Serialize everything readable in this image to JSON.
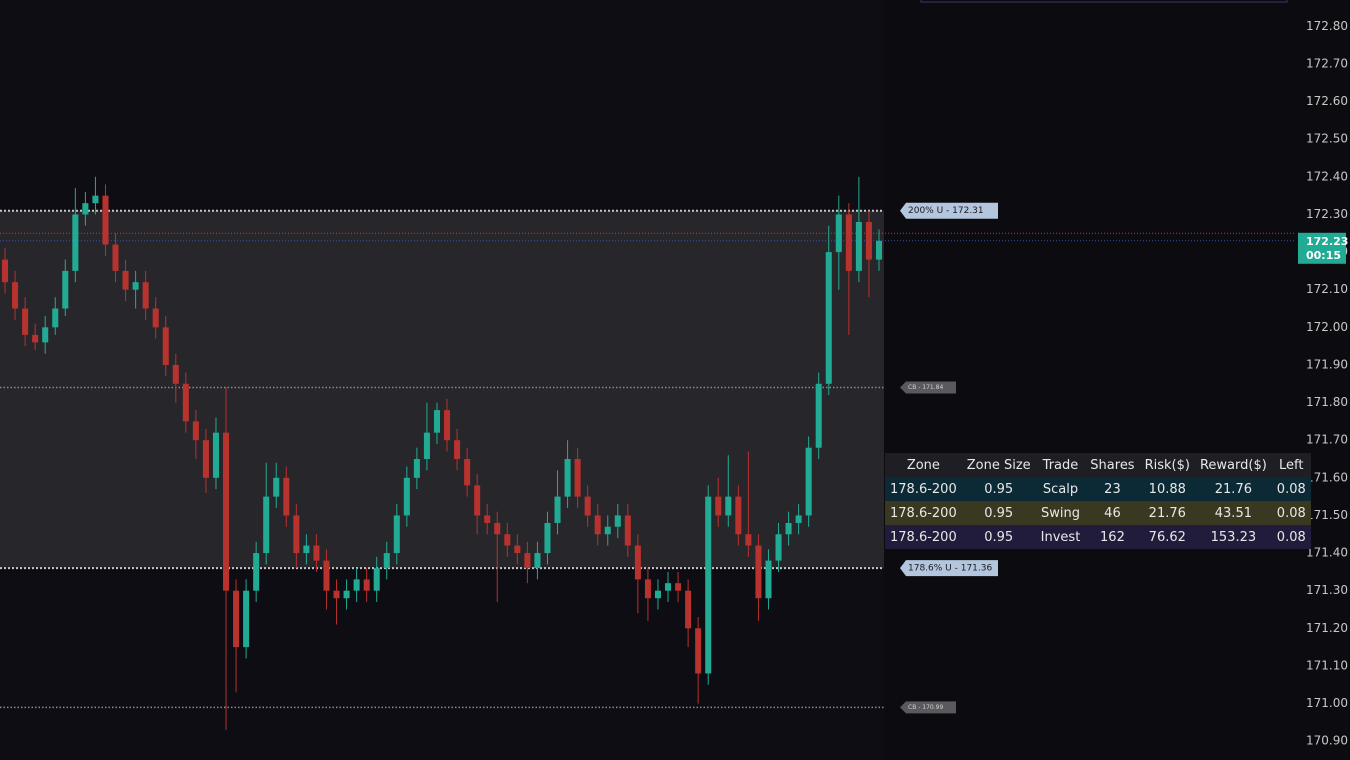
{
  "chart_data": {
    "type": "candlestick",
    "up_color": "#22ab94",
    "down_color": "#b8322e",
    "ylim": [
      170.85,
      172.87
    ],
    "yticks": [
      {
        "value": 170.9,
        "label": "170.90"
      },
      {
        "value": 171.0,
        "label": "171.00"
      },
      {
        "value": 171.1,
        "label": "171.10"
      },
      {
        "value": 171.2,
        "label": "171.20"
      },
      {
        "value": 171.3,
        "label": "171.30"
      },
      {
        "value": 171.4,
        "label": "171.40"
      },
      {
        "value": 171.5,
        "label": "171.50"
      },
      {
        "value": 171.6,
        "label": "171.60"
      },
      {
        "value": 171.7,
        "label": "171.70"
      },
      {
        "value": 171.8,
        "label": "171.80"
      },
      {
        "value": 171.9,
        "label": "171.90"
      },
      {
        "value": 172.0,
        "label": "172.00"
      },
      {
        "value": 172.1,
        "label": "172.10"
      },
      {
        "value": 172.2,
        "label": "172.20"
      },
      {
        "value": 172.3,
        "label": "172.30"
      },
      {
        "value": 172.4,
        "label": "172.40"
      },
      {
        "value": 172.5,
        "label": "172.50"
      },
      {
        "value": 172.6,
        "label": "172.60"
      },
      {
        "value": 172.7,
        "label": "172.70"
      },
      {
        "value": 172.8,
        "label": "172.80"
      }
    ],
    "open": [
      172.18,
      172.12,
      172.05,
      171.98,
      171.96,
      172.0,
      172.05,
      172.15,
      172.3,
      172.33,
      172.35,
      172.22,
      172.15,
      172.1,
      172.12,
      172.05,
      172.0,
      171.9,
      171.85,
      171.75,
      171.7,
      171.6,
      171.72,
      171.3,
      171.15,
      171.3,
      171.4,
      171.55,
      171.6,
      171.5,
      171.4,
      171.42,
      171.38,
      171.3,
      171.28,
      171.3,
      171.33,
      171.3,
      171.36,
      171.4,
      171.5,
      171.6,
      171.65,
      171.72,
      171.78,
      171.7,
      171.65,
      171.58,
      171.5,
      171.48,
      171.45,
      171.42,
      171.4,
      171.36,
      171.4,
      171.48,
      171.55,
      171.65,
      171.55,
      171.5,
      171.45,
      171.47,
      171.5,
      171.42,
      171.33,
      171.28,
      171.3,
      171.32,
      171.3,
      171.2,
      171.08,
      171.55,
      171.5,
      171.55,
      171.45,
      171.42,
      171.28,
      171.38,
      171.45,
      171.48,
      171.5,
      171.68,
      171.85,
      172.2,
      172.3,
      172.15,
      172.28,
      172.18
    ],
    "high": [
      172.21,
      172.15,
      172.08,
      172.01,
      172.03,
      172.08,
      172.18,
      172.37,
      172.36,
      172.4,
      172.38,
      172.25,
      172.18,
      172.15,
      172.15,
      172.08,
      172.03,
      171.93,
      171.88,
      171.78,
      171.73,
      171.76,
      171.84,
      171.33,
      171.33,
      171.43,
      171.64,
      171.64,
      171.63,
      171.53,
      171.45,
      171.45,
      171.41,
      171.33,
      171.33,
      171.36,
      171.36,
      171.39,
      171.43,
      171.53,
      171.63,
      171.68,
      171.8,
      171.8,
      171.81,
      171.73,
      171.68,
      171.61,
      171.53,
      171.51,
      171.48,
      171.45,
      171.43,
      171.43,
      171.51,
      171.62,
      171.7,
      171.68,
      171.58,
      171.53,
      171.5,
      171.53,
      171.53,
      171.45,
      171.36,
      171.33,
      171.35,
      171.35,
      171.33,
      171.23,
      171.58,
      171.6,
      171.66,
      171.58,
      171.67,
      171.45,
      171.41,
      171.48,
      171.51,
      171.53,
      171.71,
      171.88,
      172.27,
      172.35,
      172.33,
      172.4,
      172.31,
      172.26
    ],
    "low": [
      172.09,
      172.02,
      171.95,
      171.94,
      171.93,
      171.98,
      172.03,
      172.12,
      172.27,
      172.3,
      172.19,
      172.12,
      172.07,
      172.05,
      172.02,
      171.97,
      171.87,
      171.8,
      171.72,
      171.65,
      171.56,
      171.57,
      170.93,
      171.03,
      171.12,
      171.27,
      171.37,
      171.52,
      171.47,
      171.36,
      171.37,
      171.35,
      171.25,
      171.21,
      171.25,
      171.27,
      171.27,
      171.27,
      171.33,
      171.37,
      171.47,
      171.57,
      171.62,
      171.69,
      171.67,
      171.62,
      171.55,
      171.45,
      171.45,
      171.27,
      171.39,
      171.37,
      171.32,
      171.33,
      171.37,
      171.45,
      171.52,
      171.52,
      171.47,
      171.42,
      171.42,
      171.44,
      171.39,
      171.24,
      171.22,
      171.25,
      171.27,
      171.27,
      171.15,
      171.0,
      171.05,
      171.47,
      171.47,
      171.42,
      171.39,
      171.22,
      171.25,
      171.35,
      171.42,
      171.45,
      171.47,
      171.65,
      171.82,
      172.1,
      171.98,
      172.12,
      172.08,
      172.15
    ],
    "close": [
      172.12,
      172.05,
      171.98,
      171.96,
      172.0,
      172.05,
      172.15,
      172.3,
      172.33,
      172.35,
      172.22,
      172.15,
      172.1,
      172.12,
      172.05,
      172.0,
      171.9,
      171.85,
      171.75,
      171.7,
      171.6,
      171.72,
      171.3,
      171.15,
      171.3,
      171.4,
      171.55,
      171.6,
      171.5,
      171.4,
      171.42,
      171.38,
      171.3,
      171.28,
      171.3,
      171.33,
      171.3,
      171.36,
      171.4,
      171.5,
      171.6,
      171.65,
      171.72,
      171.78,
      171.7,
      171.65,
      171.58,
      171.5,
      171.48,
      171.45,
      171.42,
      171.4,
      171.36,
      171.4,
      171.48,
      171.55,
      171.65,
      171.55,
      171.5,
      171.45,
      171.47,
      171.5,
      171.42,
      171.33,
      171.28,
      171.3,
      171.32,
      171.3,
      171.2,
      171.08,
      171.55,
      171.5,
      171.55,
      171.45,
      171.42,
      171.28,
      171.38,
      171.45,
      171.48,
      171.5,
      171.68,
      171.85,
      172.2,
      172.3,
      172.15,
      172.28,
      172.18,
      172.23
    ],
    "levels": [
      {
        "value": 172.31,
        "label": "200% U - 172.31",
        "color": "#c9c9c9",
        "tag": "major"
      },
      {
        "value": 171.84,
        "label": "CB - 171.84",
        "color": "#8a8a8a",
        "tag": "minor"
      },
      {
        "value": 171.36,
        "label": "178.6% U - 171.36",
        "color": "#c9c9c9",
        "tag": "major"
      },
      {
        "value": 170.99,
        "label": "CB - 170.99",
        "color": "#8a8a8a",
        "tag": "minor"
      }
    ],
    "zone_color": "#27272b",
    "ref_line": {
      "value": 172.25,
      "color": "#b8433a"
    },
    "last_price": {
      "value": 172.23,
      "label": "172.23",
      "color": "#22ab94",
      "line_color": "#3b4fb0"
    },
    "countdown": "00:15"
  },
  "table": {
    "columns": [
      "Zone",
      "Zone Size",
      "Trade",
      "Shares",
      "Risk($)",
      "Reward($)",
      "Left"
    ],
    "row_colors": [
      "#0b2a36",
      "#3a3820",
      "#221c3c"
    ],
    "rows": [
      [
        "178.6-200",
        0.95,
        "Scalp",
        23,
        10.88,
        21.76,
        0.08
      ],
      [
        "178.6-200",
        0.95,
        "Swing",
        46,
        21.76,
        43.51,
        0.08
      ],
      [
        "178.6-200",
        0.95,
        "Invest",
        162,
        76.62,
        153.23,
        0.08
      ]
    ]
  }
}
